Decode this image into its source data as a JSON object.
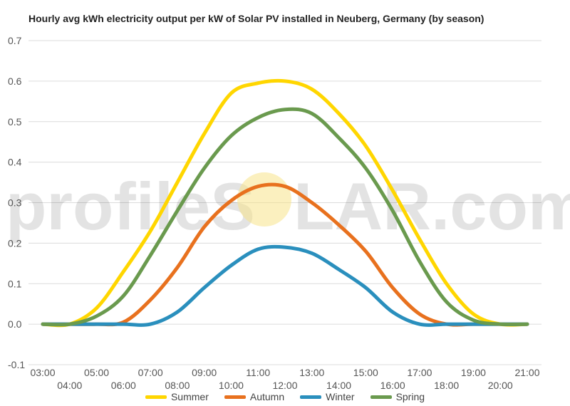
{
  "watermark": {
    "left_text": "profileS",
    "right_text": "LAR.com"
  },
  "chart_data": {
    "type": "line",
    "title": "Hourly avg kWh electricity output per kW of Solar PV installed in Neuberg, Germany (by season)",
    "xlabel": "",
    "ylabel": "",
    "x": [
      3,
      4,
      5,
      6,
      7,
      8,
      9,
      10,
      11,
      12,
      13,
      14,
      15,
      16,
      17,
      18,
      19,
      20,
      21
    ],
    "x_tick_labels": [
      "03:00",
      "04:00",
      "05:00",
      "06:00",
      "07:00",
      "08:00",
      "09:00",
      "10:00",
      "11:00",
      "12:00",
      "13:00",
      "14:00",
      "15:00",
      "16:00",
      "17:00",
      "18:00",
      "19:00",
      "20:00",
      "21:00"
    ],
    "ylim": [
      -0.1,
      0.7
    ],
    "y_ticks": [
      -0.1,
      0.0,
      0.1,
      0.2,
      0.3,
      0.4,
      0.5,
      0.6,
      0.7
    ],
    "y_tick_labels": [
      "-0.1",
      "0.0",
      "0.1",
      "0.2",
      "0.3",
      "0.4",
      "0.5",
      "0.6",
      "0.7"
    ],
    "grid": true,
    "legend_position": "bottom",
    "series": [
      {
        "name": "Summer",
        "color": "#ffd600",
        "values": [
          0.0,
          0.0,
          0.04,
          0.13,
          0.23,
          0.35,
          0.47,
          0.57,
          0.595,
          0.6,
          0.58,
          0.52,
          0.44,
          0.33,
          0.21,
          0.1,
          0.025,
          0.0,
          0.0
        ]
      },
      {
        "name": "Autumn",
        "color": "#e8711e",
        "values": [
          0.0,
          0.0,
          0.0,
          0.005,
          0.06,
          0.14,
          0.24,
          0.305,
          0.34,
          0.34,
          0.3,
          0.245,
          0.18,
          0.09,
          0.025,
          0.0,
          0.0,
          0.0,
          0.0
        ]
      },
      {
        "name": "Winter",
        "color": "#2a8fbd",
        "values": [
          0.0,
          0.0,
          0.0,
          0.0,
          0.0,
          0.03,
          0.09,
          0.145,
          0.185,
          0.19,
          0.175,
          0.135,
          0.09,
          0.03,
          0.0,
          0.0,
          0.0,
          0.0,
          0.0
        ]
      },
      {
        "name": "Spring",
        "color": "#6a9a4e",
        "values": [
          0.0,
          0.0,
          0.02,
          0.07,
          0.17,
          0.28,
          0.385,
          0.465,
          0.51,
          0.53,
          0.52,
          0.46,
          0.385,
          0.28,
          0.155,
          0.055,
          0.01,
          0.0,
          0.0
        ]
      }
    ]
  }
}
